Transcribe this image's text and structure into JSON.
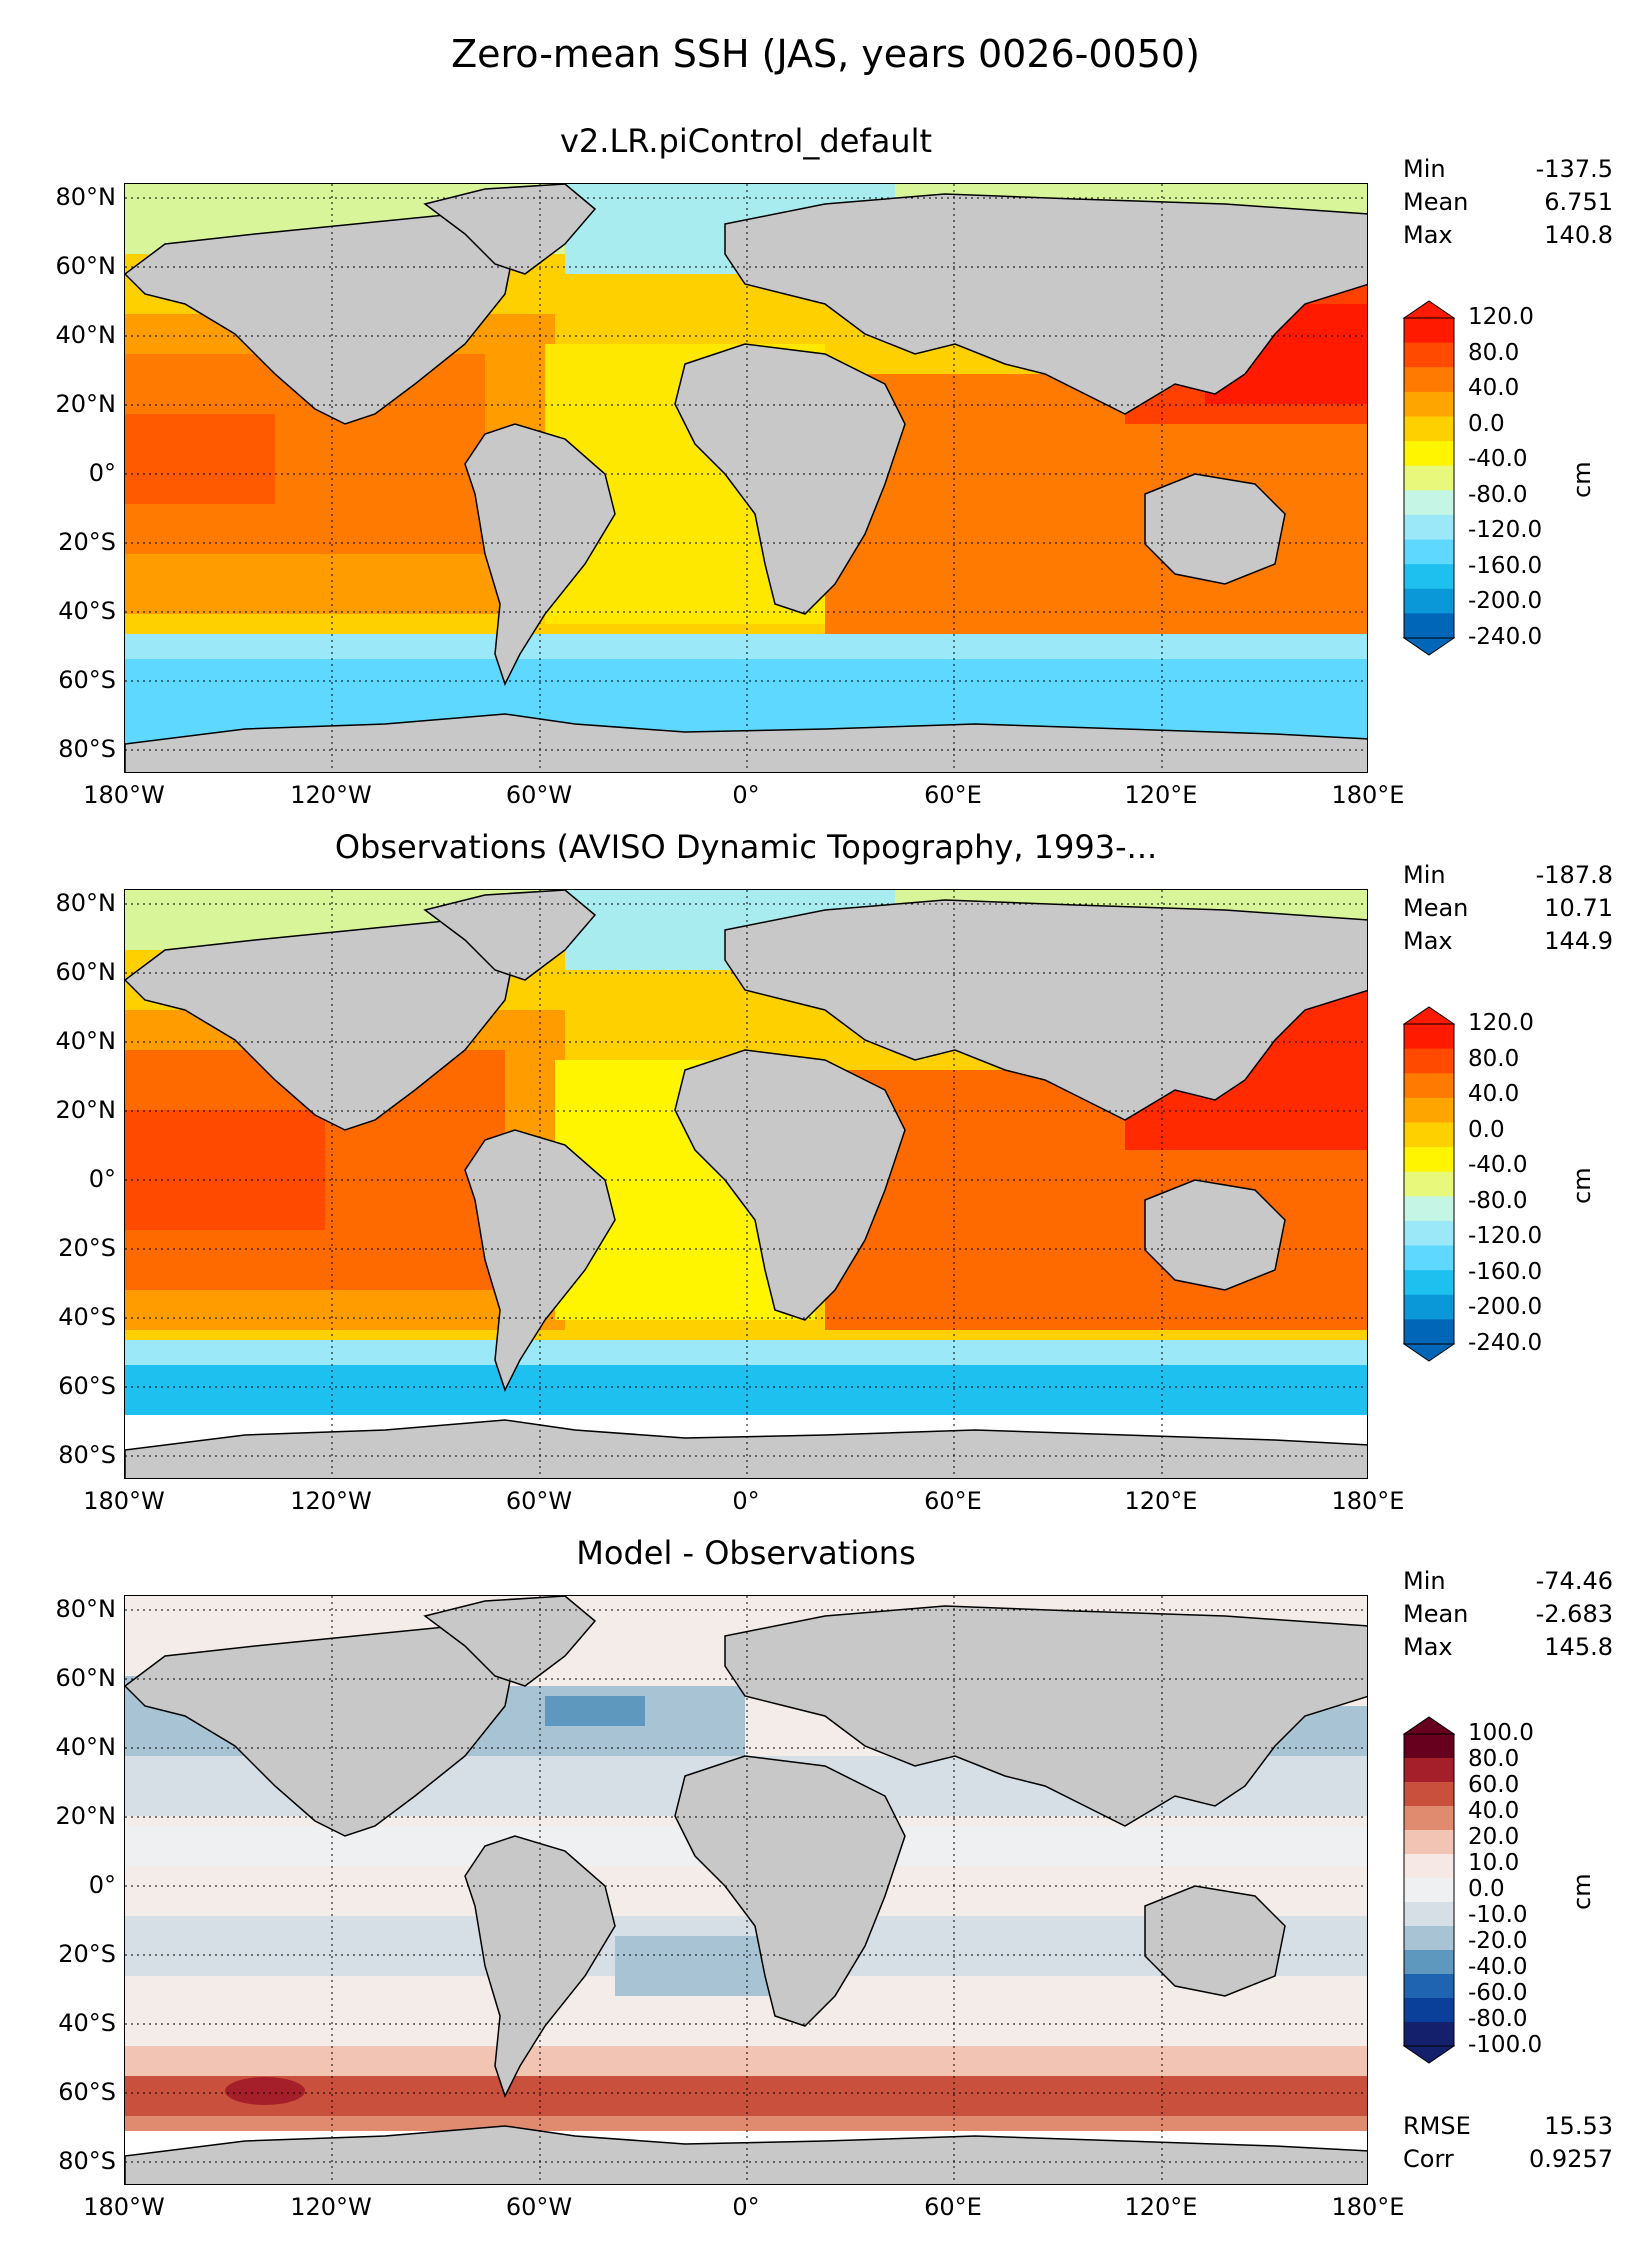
{
  "figure": {
    "title": "Zero-mean SSH (JAS, years 0026-0050)",
    "lat_labels": [
      "80°N",
      "60°N",
      "40°N",
      "20°N",
      "0°",
      "20°S",
      "40°S",
      "60°S",
      "80°S"
    ],
    "lon_labels": [
      "180°W",
      "120°W",
      "60°W",
      "0°",
      "60°E",
      "120°E",
      "180°E"
    ],
    "unit": "cm"
  },
  "panels": [
    {
      "id": "model",
      "title": "v2.LR.piControl_default",
      "stats": {
        "min_label": "Min",
        "min": "-137.5",
        "mean_label": "Mean",
        "mean": "6.751",
        "max_label": "Max",
        "max": "140.8"
      },
      "colorbar": {
        "ticks": [
          "120.0",
          "80.0",
          "40.0",
          "0.0",
          "-40.0",
          "-80.0",
          "-120.0",
          "-160.0",
          "-200.0",
          "-240.0"
        ],
        "colors": [
          "#ff1a00",
          "#ff4a00",
          "#ff7a00",
          "#ffa500",
          "#ffd000",
          "#fff500",
          "#e8f87a",
          "#c5f5e5",
          "#9be8f8",
          "#5fd8ff",
          "#1ec0f0",
          "#0a98d8",
          "#0066b8"
        ]
      }
    },
    {
      "id": "obs",
      "title": "Observations (AVISO Dynamic Topography, 1993-...",
      "stats": {
        "min_label": "Min",
        "min": "-187.8",
        "mean_label": "Mean",
        "mean": "10.71",
        "max_label": "Max",
        "max": "144.9"
      },
      "colorbar": {
        "ticks": [
          "120.0",
          "80.0",
          "40.0",
          "0.0",
          "-40.0",
          "-80.0",
          "-120.0",
          "-160.0",
          "-200.0",
          "-240.0"
        ],
        "colors": [
          "#ff1a00",
          "#ff4a00",
          "#ff7a00",
          "#ffa500",
          "#ffd000",
          "#fff500",
          "#e8f87a",
          "#c5f5e5",
          "#9be8f8",
          "#5fd8ff",
          "#1ec0f0",
          "#0a98d8",
          "#0066b8"
        ]
      }
    },
    {
      "id": "diff",
      "title": "Model - Observations",
      "stats": {
        "min_label": "Min",
        "min": "-74.46",
        "mean_label": "Mean",
        "mean": "-2.683",
        "max_label": "Max",
        "max": "145.8"
      },
      "extra_stats": {
        "rmse_label": "RMSE",
        "rmse": "15.53",
        "corr_label": "Corr",
        "corr": "0.9257"
      },
      "colorbar": {
        "ticks": [
          "100.0",
          "80.0",
          "60.0",
          "40.0",
          "20.0",
          "10.0",
          "0.0",
          "-10.0",
          "-20.0",
          "-40.0",
          "-60.0",
          "-80.0",
          "-100.0"
        ],
        "colors": [
          "#67001f",
          "#a51f2b",
          "#c8503c",
          "#e08b70",
          "#f2c4b4",
          "#f6e8e5",
          "#eef0f2",
          "#d6dfe6",
          "#a8c4d4",
          "#5f98be",
          "#1f64b0",
          "#0a3f9a",
          "#14206c"
        ]
      }
    }
  ],
  "colors": {
    "land": "#c8c8c8",
    "missing": "#ffffff"
  }
}
